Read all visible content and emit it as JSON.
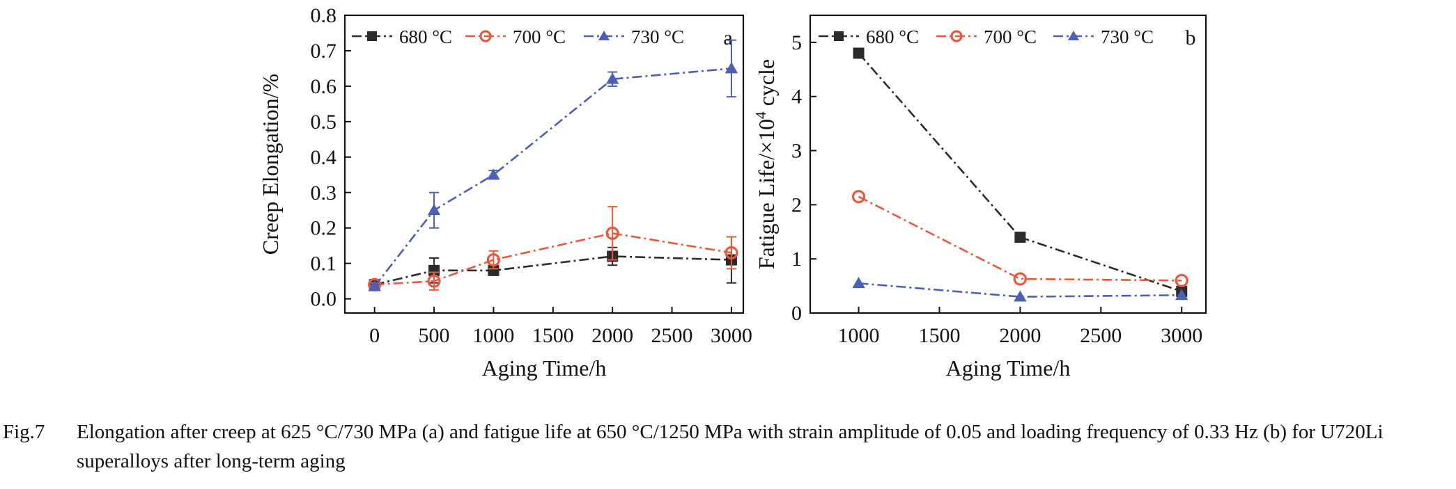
{
  "chart_data": [
    {
      "type": "line",
      "panel_label": "a",
      "xlabel": "Aging Time/h",
      "ylabel": "Creep Elongation/%",
      "xlim": [
        -250,
        3100
      ],
      "ylim": [
        -0.04,
        0.8
      ],
      "xticks": [
        0,
        500,
        1000,
        1500,
        2000,
        2500,
        3000
      ],
      "yticks": [
        0.0,
        0.1,
        0.2,
        0.3,
        0.4,
        0.5,
        0.6,
        0.7,
        0.8
      ],
      "xtick_labels": [
        "0",
        "500",
        "1000",
        "1500",
        "2000",
        "2500",
        "3000"
      ],
      "ytick_labels": [
        "0.0",
        "0.1",
        "0.2",
        "0.3",
        "0.4",
        "0.5",
        "0.6",
        "0.7",
        "0.8"
      ],
      "grid": false,
      "legend_position": "top",
      "series": [
        {
          "name": "680 °C",
          "color": "#2b2b2b",
          "marker": "square",
          "x": [
            0,
            500,
            1000,
            2000,
            3000
          ],
          "y": [
            0.04,
            0.08,
            0.08,
            0.12,
            0.11
          ],
          "err": [
            0.005,
            0.035,
            0.01,
            0.025,
            0.065
          ]
        },
        {
          "name": "700 °C",
          "color": "#e8583c",
          "marker": "circle",
          "x": [
            0,
            500,
            1000,
            2000,
            3000
          ],
          "y": [
            0.04,
            0.05,
            0.11,
            0.185,
            0.13
          ],
          "err": [
            0.005,
            0.025,
            0.025,
            0.075,
            0.045
          ]
        },
        {
          "name": "730 °C",
          "color": "#4a5fb5",
          "marker": "triangle",
          "x": [
            0,
            500,
            1000,
            2000,
            3000
          ],
          "y": [
            0.035,
            0.25,
            0.35,
            0.62,
            0.65
          ],
          "err": [
            0.005,
            0.05,
            0.012,
            0.02,
            0.08
          ]
        }
      ]
    },
    {
      "type": "line",
      "panel_label": "b",
      "xlabel": "Aging Time/h",
      "ylabel_main": "Fatigue Life/×10",
      "ylabel_sup": "4",
      "ylabel_suffix": " cycle",
      "xlim": [
        700,
        3150
      ],
      "ylim": [
        0,
        5.5
      ],
      "xticks": [
        1000,
        1500,
        2000,
        2500,
        3000
      ],
      "yticks": [
        0,
        1,
        2,
        3,
        4,
        5
      ],
      "xtick_labels": [
        "1000",
        "1500",
        "2000",
        "2500",
        "3000"
      ],
      "ytick_labels": [
        "0",
        "1",
        "2",
        "3",
        "4",
        "5"
      ],
      "grid": false,
      "legend_position": "top",
      "series": [
        {
          "name": "680 °C",
          "color": "#2b2b2b",
          "marker": "square",
          "x": [
            1000,
            2000,
            3000
          ],
          "y": [
            4.8,
            1.4,
            0.4
          ]
        },
        {
          "name": "700 °C",
          "color": "#e8583c",
          "marker": "circle",
          "x": [
            1000,
            2000,
            3000
          ],
          "y": [
            2.15,
            0.63,
            0.6
          ]
        },
        {
          "name": "730 °C",
          "color": "#4a5fb5",
          "marker": "triangle",
          "x": [
            1000,
            2000,
            3000
          ],
          "y": [
            0.55,
            0.3,
            0.33
          ]
        }
      ]
    }
  ],
  "caption": {
    "label": "Fig.7",
    "text": "Elongation after creep at 625 °C/730 MPa (a) and fatigue life at 650 °C/1250 MPa with strain amplitude of 0.05 and loading frequency of 0.33 Hz (b) for U720Li superalloys after long-term aging"
  }
}
